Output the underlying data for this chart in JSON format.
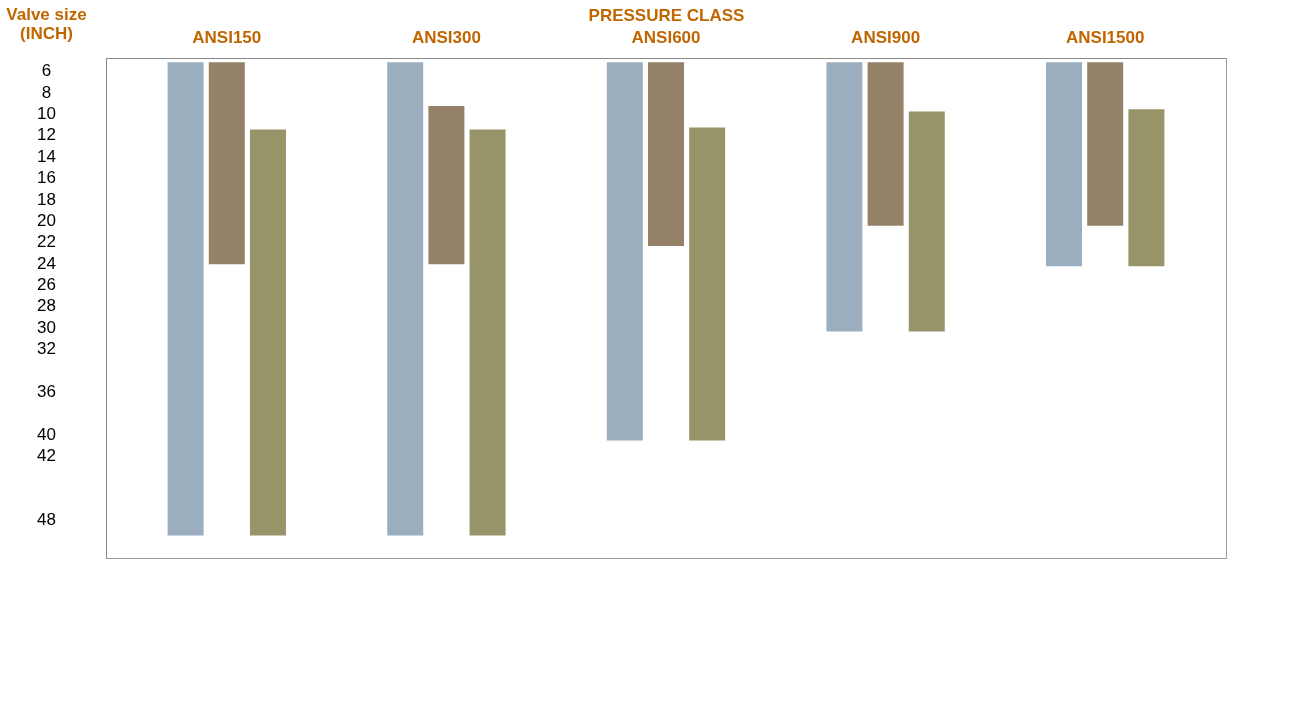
{
  "chart_data": {
    "type": "bar",
    "xlabel": "PRESSURE CLASS",
    "ylabel": "Valve size\n(INCH)",
    "categories": [
      "ANSI150",
      "ANSI300",
      "ANSI600",
      "ANSI900",
      "ANSI1500"
    ],
    "ylim": [
      51.6,
      4.8
    ],
    "yticks": [
      6,
      8,
      10,
      12,
      14,
      16,
      18,
      20,
      22,
      24,
      26,
      28,
      30,
      32,
      36,
      40,
      42,
      48
    ],
    "series": [
      {
        "color": "#9aaebf",
        "base": [
          5.2,
          5.2,
          5.2,
          5.2,
          5.2
        ],
        "values": [
          44.3,
          44.3,
          35.4,
          25.2,
          19.1
        ]
      },
      {
        "color": "#958068",
        "base": [
          5.2,
          9.3,
          5.2,
          5.2,
          5.2
        ],
        "values": [
          18.9,
          14.8,
          17.2,
          15.3,
          15.3
        ]
      },
      {
        "color": "#979469",
        "base": [
          11.5,
          11.5,
          11.3,
          9.8,
          9.6
        ],
        "values": [
          38,
          38,
          29.3,
          20.6,
          14.7
        ]
      }
    ],
    "grid": false
  }
}
